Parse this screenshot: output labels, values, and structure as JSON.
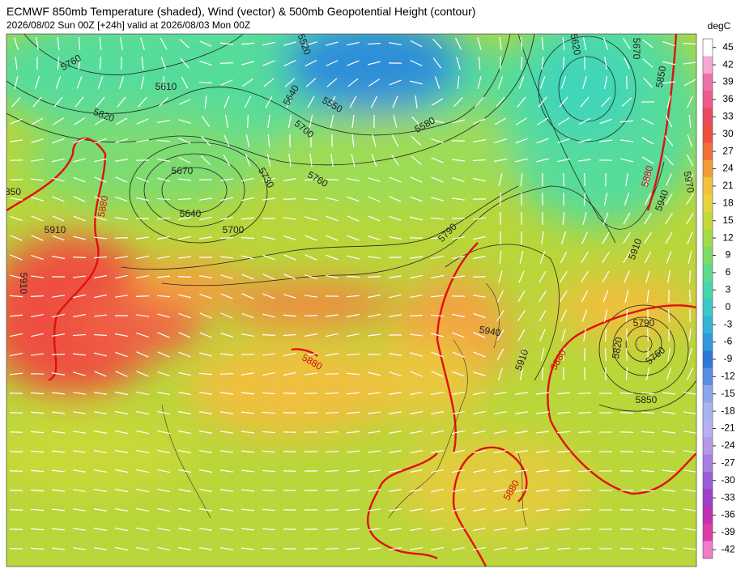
{
  "header": {
    "title": "ECMWF 850mb Temperature (shaded), Wind (vector) & 500mb Geopotential Height (contour)",
    "subtitle": "2026/08/02 Sun 00Z [+24h] valid at 2026/08/03 Mon 00Z"
  },
  "colorbar": {
    "unit": "degC",
    "ticks": [
      45,
      42,
      39,
      36,
      33,
      30,
      27,
      24,
      21,
      18,
      15,
      12,
      9,
      6,
      3,
      0,
      -3,
      -6,
      -9,
      -12,
      -15,
      -18,
      -21,
      -24,
      -27,
      -30,
      -33,
      -36,
      -39,
      -42
    ]
  },
  "contour_labels": [
    "5760",
    "5610",
    "5820",
    "5640",
    "5550",
    "5700",
    "5580",
    "5520",
    "5670",
    "5640",
    "5730",
    "5760",
    "5700",
    "5910",
    "5880",
    "5790",
    "5940",
    "5910",
    "5880",
    "5880",
    "5790",
    "5820",
    "5760",
    "5850",
    "5910",
    "5940",
    "5880",
    "5970",
    "5850",
    "5670",
    "5620",
    "5910",
    "350",
    "5880"
  ]
}
